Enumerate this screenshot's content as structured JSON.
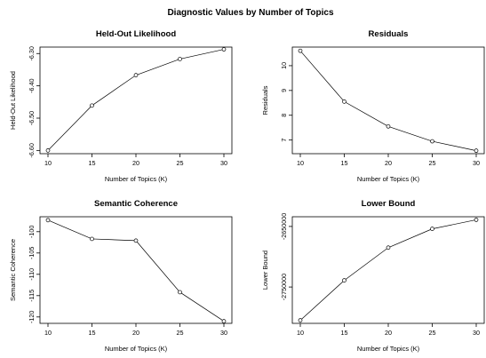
{
  "title": "Diagnostic Values by Number of Topics",
  "chart_data": [
    {
      "type": "line",
      "title": "Held-Out Likelihood",
      "xlabel": "Number of Topics (K)",
      "ylabel": "Held-Out Likelihood",
      "x": [
        10,
        15,
        20,
        25,
        30
      ],
      "values": [
        -6.6,
        -6.461,
        -6.367,
        -6.317,
        -6.287
      ],
      "xticks": [
        10,
        15,
        20,
        25,
        30
      ],
      "yticks": [
        -6.6,
        -6.5,
        -6.4,
        -6.3
      ],
      "ytick_labels": [
        "-6.60",
        "-6.50",
        "-6.40",
        "-6.30"
      ],
      "ylim": [
        -6.61,
        -6.28
      ]
    },
    {
      "type": "line",
      "title": "Residuals",
      "xlabel": "Number of Topics (K)",
      "ylabel": "Residuals",
      "x": [
        10,
        15,
        20,
        25,
        30
      ],
      "values": [
        10.6,
        8.55,
        7.55,
        6.95,
        6.57
      ],
      "xticks": [
        10,
        15,
        20,
        25,
        30
      ],
      "yticks": [
        7,
        8,
        9,
        10
      ],
      "ytick_labels": [
        "7",
        "8",
        "9",
        "10"
      ],
      "ylim": [
        6.45,
        10.75
      ]
    },
    {
      "type": "line",
      "title": "Semantic Coherence",
      "xlabel": "Number of Topics (K)",
      "ylabel": "Semantic Coherence",
      "x": [
        10,
        15,
        20,
        25,
        30
      ],
      "values": [
        -97.3,
        -101.7,
        -102.1,
        -114.2,
        -121.0
      ],
      "xticks": [
        10,
        15,
        20,
        25,
        30
      ],
      "yticks": [
        -100,
        -105,
        -110,
        -115,
        -120
      ],
      "ytick_labels": [
        "-100",
        "-105",
        "-110",
        "-115",
        "-120"
      ],
      "ylim": [
        -121.5,
        -96.5
      ]
    },
    {
      "type": "line",
      "title": "Lower Bound",
      "xlabel": "Number of Topics (K)",
      "ylabel": "Lower Bound",
      "x": [
        10,
        15,
        20,
        25,
        30
      ],
      "values": [
        -2805000,
        -2739000,
        -2685000,
        -2654000,
        -2639000
      ],
      "xticks": [
        10,
        15,
        20,
        25,
        30
      ],
      "yticks": [
        -2750000,
        -2650000
      ],
      "ytick_labels": [
        "-2750000",
        "-2650000"
      ],
      "ylim": [
        -2810000,
        -2634000
      ]
    }
  ]
}
